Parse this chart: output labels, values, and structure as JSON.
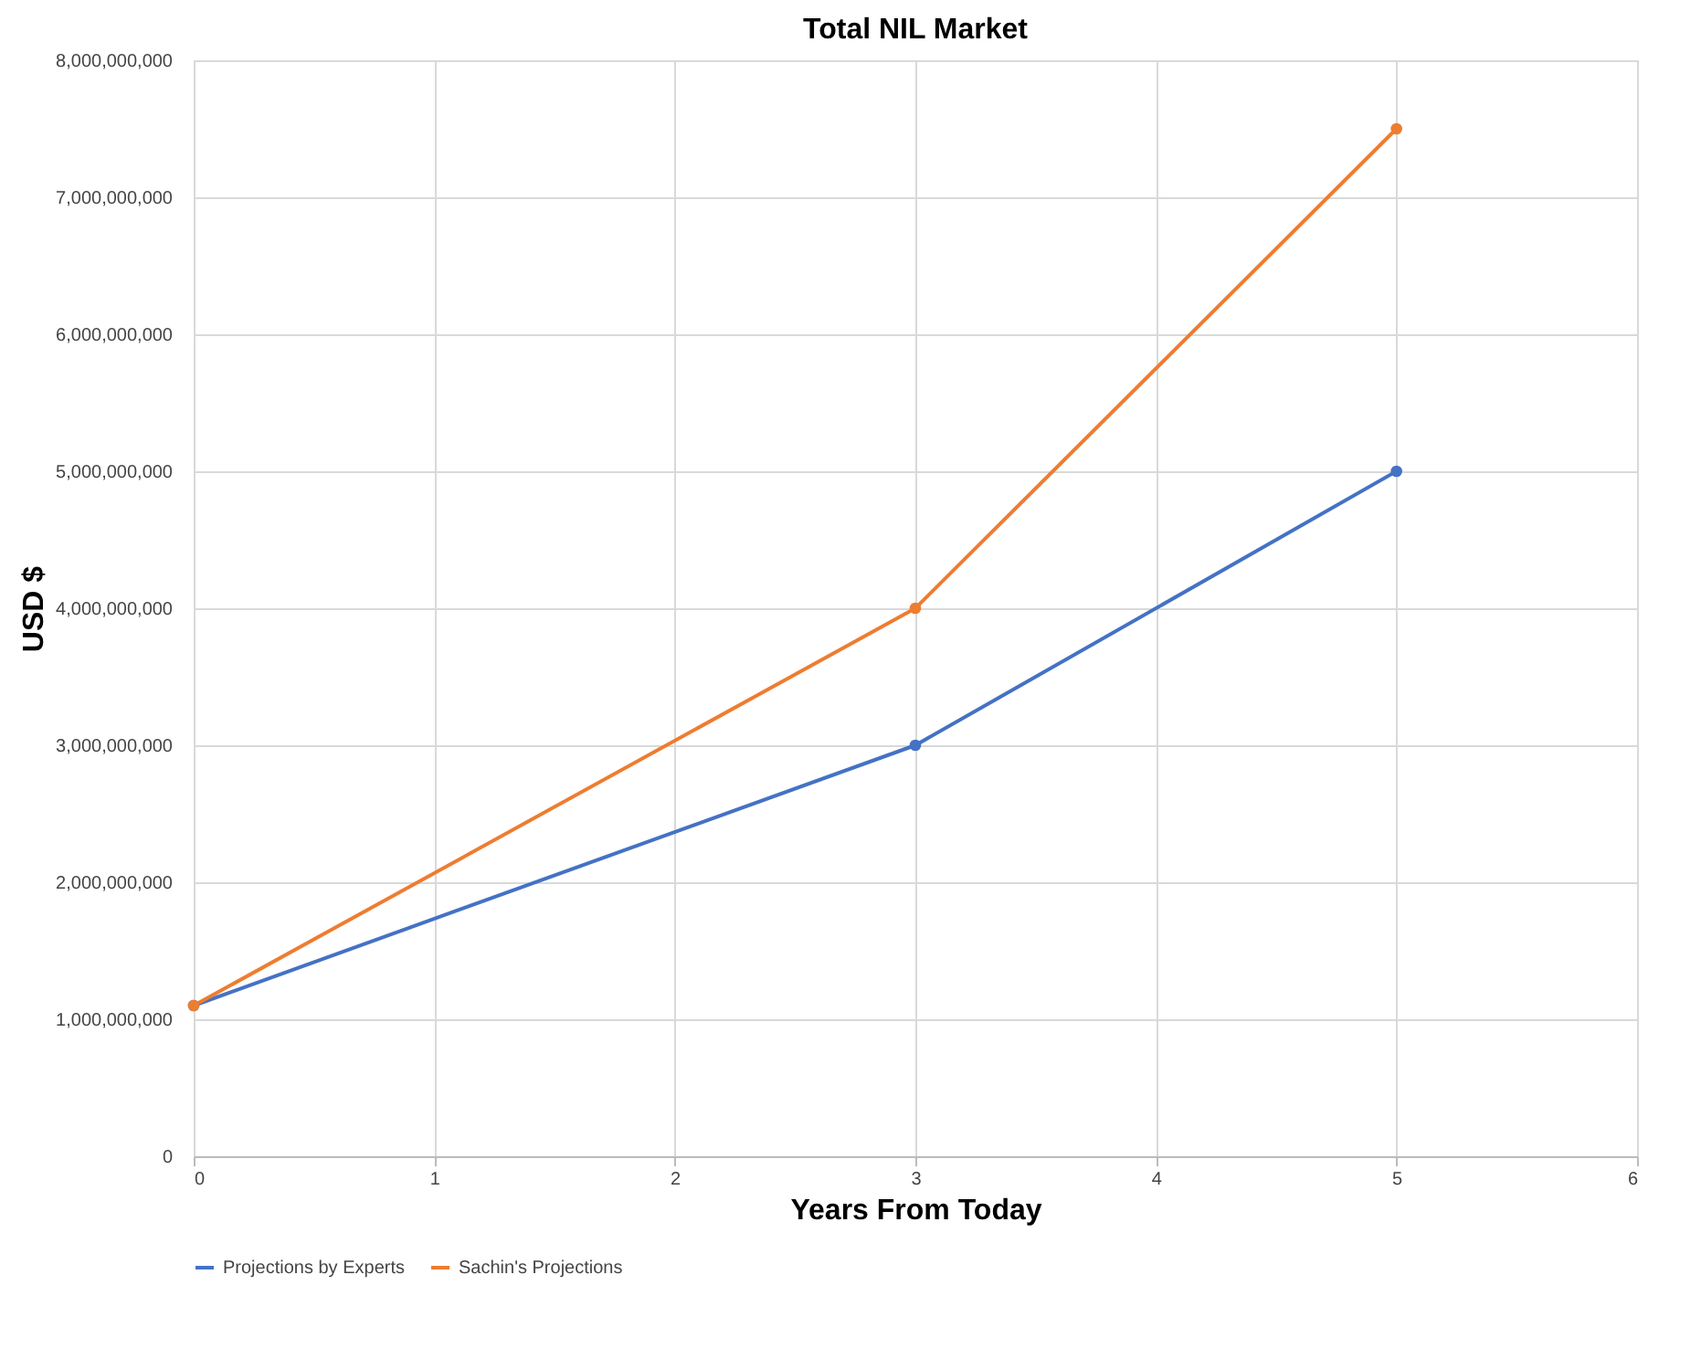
{
  "chart_data": {
    "type": "line",
    "title": "Total NIL Market",
    "xlabel": "Years From Today",
    "ylabel": "USD $",
    "x": [
      0,
      3,
      5
    ],
    "series": [
      {
        "name": "Projections by Experts",
        "color": "#4472c4",
        "values": [
          1100000000,
          3000000000,
          5000000000
        ]
      },
      {
        "name": "Sachin's Projections",
        "color": "#ed7d31",
        "values": [
          1100000000,
          4000000000,
          7500000000
        ]
      }
    ],
    "xlim": [
      0,
      6
    ],
    "xticks": [
      0,
      1,
      2,
      3,
      4,
      5,
      6
    ],
    "ylim": [
      0,
      8000000000
    ],
    "yticks": [
      0,
      {
        "value": 1000000000,
        "label": "1,000,000,000"
      },
      {
        "value": 2000000000,
        "label": "2,000,000,000"
      },
      {
        "value": 3000000000,
        "label": "3,000,000,000"
      },
      {
        "value": 4000000000,
        "label": "4,000,000,000"
      },
      {
        "value": 5000000000,
        "label": "5,000,000,000"
      },
      {
        "value": 6000000000,
        "label": "6,000,000,000"
      },
      {
        "value": 7000000000,
        "label": "7,000,000,000"
      },
      {
        "value": 8000000000,
        "label": "8,000,000,000"
      }
    ],
    "grid": true,
    "legend": "bottom",
    "marker": "circle",
    "line_style": "solid"
  }
}
